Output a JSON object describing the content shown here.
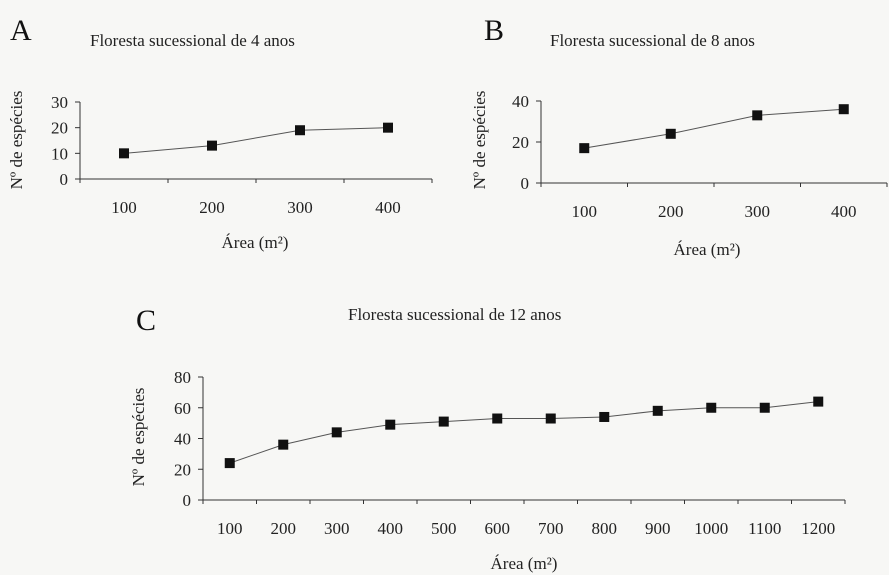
{
  "chart_data": [
    {
      "panel": "A",
      "type": "line",
      "title": "Floresta sucessional de 4 anos",
      "xlabel": "Área (m²)",
      "ylabel": "Nº de espécies",
      "x": [
        100,
        200,
        300,
        400
      ],
      "y": [
        10,
        13,
        19,
        20
      ],
      "xlim": [
        50,
        450
      ],
      "ylim": [
        0,
        30
      ],
      "yticks": [
        0,
        10,
        20,
        30
      ],
      "grid": false
    },
    {
      "panel": "B",
      "type": "line",
      "title": "Floresta sucessional de 8 anos",
      "xlabel": "Área (m²)",
      "ylabel": "Nº de espécies",
      "x": [
        100,
        200,
        300,
        400
      ],
      "y": [
        17,
        24,
        33,
        36
      ],
      "xlim": [
        50,
        450
      ],
      "ylim": [
        0,
        40
      ],
      "yticks": [
        0,
        20,
        40
      ],
      "grid": false
    },
    {
      "panel": "C",
      "type": "line",
      "title": "Floresta sucessional de 12 anos",
      "xlabel": "Área (m²)",
      "ylabel": "Nº de espécies",
      "x": [
        100,
        200,
        300,
        400,
        500,
        600,
        700,
        800,
        900,
        1000,
        1100,
        1200
      ],
      "y": [
        24,
        36,
        44,
        49,
        51,
        53,
        53,
        54,
        58,
        60,
        60,
        64
      ],
      "xlim": [
        50,
        1250
      ],
      "ylim": [
        0,
        80
      ],
      "yticks": [
        0,
        20,
        40,
        60,
        80
      ],
      "grid": false
    }
  ]
}
